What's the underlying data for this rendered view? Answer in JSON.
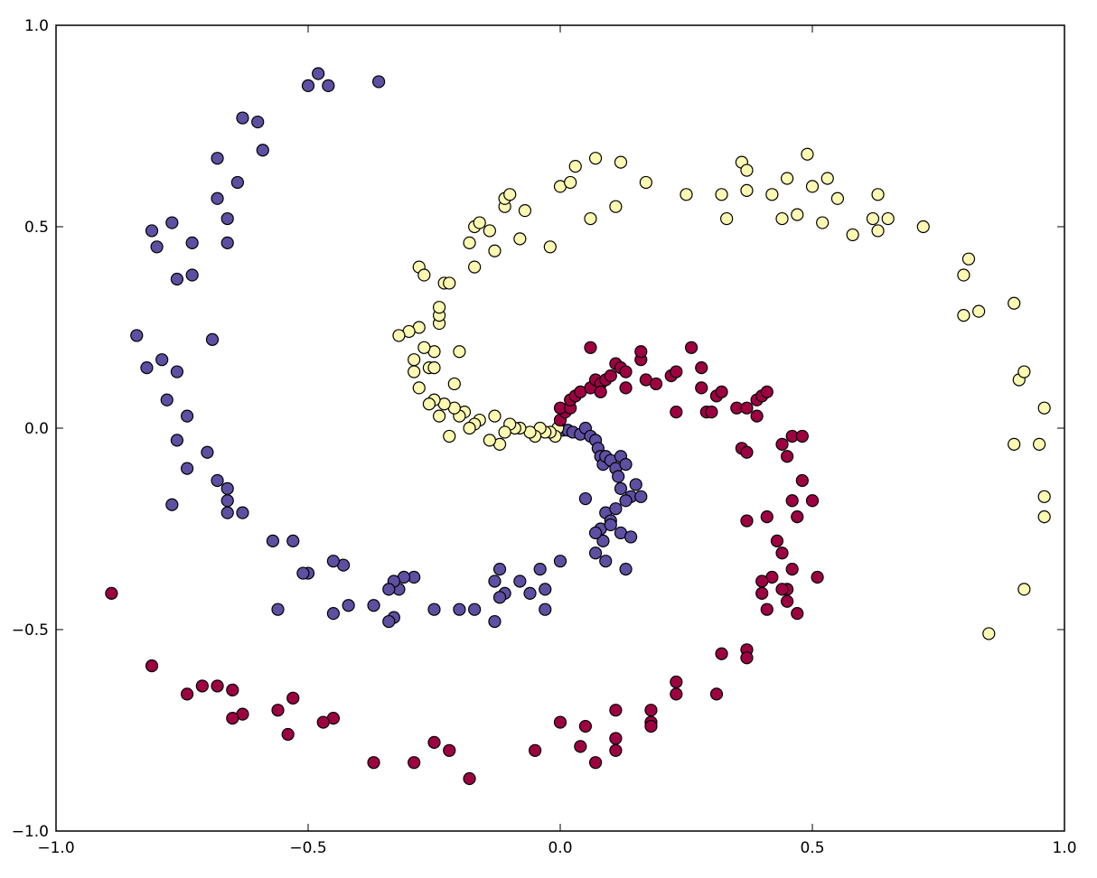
{
  "chart_data": {
    "type": "scatter",
    "title": "",
    "xlabel": "",
    "ylabel": "",
    "xlim": [
      -1.0,
      1.0
    ],
    "ylim": [
      -1.0,
      1.0
    ],
    "xticks": [
      -1.0,
      -0.5,
      0.0,
      0.5,
      1.0
    ],
    "xtick_labels": [
      "−1.0",
      "−0.5",
      "0.0",
      "0.5",
      "1.0"
    ],
    "yticks": [
      -1.0,
      -0.5,
      0.0,
      0.5,
      1.0
    ],
    "ytick_labels": [
      "−1.0",
      "−0.5",
      "0.0",
      "0.5",
      "1.0"
    ],
    "grid": false,
    "legend": "none",
    "series": [
      {
        "color": "#5e4fa2",
        "points": [
          [
            0.005,
            -0.005
          ],
          [
            0.015,
            -0.005
          ],
          [
            0.025,
            -0.01
          ],
          [
            0.04,
            -0.015
          ],
          [
            0.05,
            0.0
          ],
          [
            0.06,
            -0.02
          ],
          [
            0.07,
            -0.03
          ],
          [
            0.075,
            -0.05
          ],
          [
            0.08,
            -0.07
          ],
          [
            0.085,
            -0.09
          ],
          [
            0.09,
            -0.07
          ],
          [
            0.1,
            -0.08
          ],
          [
            0.11,
            -0.1
          ],
          [
            0.115,
            -0.12
          ],
          [
            0.12,
            -0.07
          ],
          [
            0.13,
            -0.09
          ],
          [
            0.14,
            -0.17
          ],
          [
            0.12,
            -0.15
          ],
          [
            0.15,
            -0.14
          ],
          [
            0.16,
            -0.17
          ],
          [
            0.13,
            -0.18
          ],
          [
            0.05,
            -0.175
          ],
          [
            0.09,
            -0.21
          ],
          [
            0.1,
            -0.23
          ],
          [
            0.08,
            -0.25
          ],
          [
            0.085,
            -0.28
          ],
          [
            0.07,
            -0.31
          ],
          [
            0.09,
            -0.33
          ],
          [
            0.12,
            -0.26
          ],
          [
            0.14,
            -0.27
          ],
          [
            0.13,
            -0.35
          ],
          [
            0.07,
            -0.26
          ],
          [
            0.1,
            -0.24
          ],
          [
            0.11,
            -0.2
          ],
          [
            0.0,
            -0.33
          ],
          [
            -0.03,
            -0.4
          ],
          [
            -0.04,
            -0.35
          ],
          [
            -0.06,
            -0.41
          ],
          [
            -0.08,
            -0.38
          ],
          [
            -0.11,
            -0.41
          ],
          [
            -0.12,
            -0.42
          ],
          [
            -0.13,
            -0.38
          ],
          [
            -0.12,
            -0.35
          ],
          [
            -0.13,
            -0.48
          ],
          [
            -0.17,
            -0.45
          ],
          [
            -0.2,
            -0.45
          ],
          [
            -0.03,
            -0.45
          ],
          [
            -0.25,
            -0.45
          ],
          [
            -0.29,
            -0.37
          ],
          [
            -0.31,
            -0.37
          ],
          [
            -0.32,
            -0.4
          ],
          [
            -0.33,
            -0.38
          ],
          [
            -0.34,
            -0.4
          ],
          [
            -0.33,
            -0.47
          ],
          [
            -0.34,
            -0.48
          ],
          [
            -0.37,
            -0.44
          ],
          [
            -0.42,
            -0.44
          ],
          [
            -0.45,
            -0.46
          ],
          [
            -0.43,
            -0.34
          ],
          [
            -0.45,
            -0.33
          ],
          [
            -0.5,
            -0.36
          ],
          [
            -0.51,
            -0.36
          ],
          [
            -0.53,
            -0.28
          ],
          [
            -0.56,
            -0.45
          ],
          [
            -0.57,
            -0.28
          ],
          [
            -0.63,
            -0.21
          ],
          [
            -0.66,
            -0.21
          ],
          [
            -0.66,
            -0.18
          ],
          [
            -0.66,
            -0.15
          ],
          [
            -0.68,
            -0.13
          ],
          [
            -0.7,
            -0.06
          ],
          [
            -0.74,
            -0.1
          ],
          [
            -0.74,
            0.03
          ],
          [
            -0.76,
            -0.03
          ],
          [
            -0.77,
            -0.19
          ],
          [
            -0.78,
            0.07
          ],
          [
            -0.76,
            0.14
          ],
          [
            -0.79,
            0.17
          ],
          [
            -0.82,
            0.15
          ],
          [
            -0.84,
            0.23
          ],
          [
            -0.69,
            0.22
          ],
          [
            -0.73,
            0.38
          ],
          [
            -0.76,
            0.37
          ],
          [
            -0.73,
            0.46
          ],
          [
            -0.77,
            0.51
          ],
          [
            -0.8,
            0.45
          ],
          [
            -0.81,
            0.49
          ],
          [
            -0.66,
            0.46
          ],
          [
            -0.66,
            0.52
          ],
          [
            -0.68,
            0.57
          ],
          [
            -0.68,
            0.67
          ],
          [
            -0.64,
            0.61
          ],
          [
            -0.63,
            0.77
          ],
          [
            -0.6,
            0.76
          ],
          [
            -0.59,
            0.69
          ],
          [
            -0.5,
            0.85
          ],
          [
            -0.48,
            0.88
          ],
          [
            -0.46,
            0.85
          ],
          [
            -0.36,
            0.86
          ]
        ]
      },
      {
        "color": "#fbf9b2",
        "points": [
          [
            -0.005,
            0.0
          ],
          [
            -0.01,
            -0.02
          ],
          [
            -0.02,
            -0.01
          ],
          [
            -0.03,
            -0.01
          ],
          [
            -0.04,
            0.0
          ],
          [
            -0.05,
            -0.02
          ],
          [
            -0.06,
            -0.01
          ],
          [
            -0.08,
            0.0
          ],
          [
            -0.09,
            0.0
          ],
          [
            -0.1,
            0.01
          ],
          [
            -0.11,
            -0.01
          ],
          [
            -0.12,
            -0.04
          ],
          [
            -0.13,
            0.03
          ],
          [
            -0.14,
            -0.03
          ],
          [
            -0.16,
            0.02
          ],
          [
            -0.17,
            0.01
          ],
          [
            -0.18,
            0.0
          ],
          [
            -0.19,
            0.04
          ],
          [
            -0.2,
            0.03
          ],
          [
            -0.21,
            0.05
          ],
          [
            -0.22,
            -0.02
          ],
          [
            -0.23,
            0.06
          ],
          [
            -0.24,
            0.03
          ],
          [
            -0.25,
            0.07
          ],
          [
            -0.26,
            0.06
          ],
          [
            -0.28,
            0.1
          ],
          [
            -0.29,
            0.14
          ],
          [
            -0.29,
            0.17
          ],
          [
            -0.26,
            0.15
          ],
          [
            -0.25,
            0.19
          ],
          [
            -0.27,
            0.2
          ],
          [
            -0.25,
            0.15
          ],
          [
            -0.21,
            0.11
          ],
          [
            -0.2,
            0.19
          ],
          [
            -0.28,
            0.25
          ],
          [
            -0.24,
            0.26
          ],
          [
            -0.24,
            0.28
          ],
          [
            -0.24,
            0.3
          ],
          [
            -0.3,
            0.24
          ],
          [
            -0.32,
            0.23
          ],
          [
            -0.28,
            0.4
          ],
          [
            -0.27,
            0.38
          ],
          [
            -0.23,
            0.36
          ],
          [
            -0.22,
            0.36
          ],
          [
            -0.18,
            0.46
          ],
          [
            -0.17,
            0.4
          ],
          [
            -0.17,
            0.5
          ],
          [
            -0.16,
            0.51
          ],
          [
            -0.14,
            0.49
          ],
          [
            -0.13,
            0.44
          ],
          [
            -0.11,
            0.55
          ],
          [
            -0.11,
            0.57
          ],
          [
            -0.1,
            0.58
          ],
          [
            -0.08,
            0.47
          ],
          [
            -0.07,
            0.54
          ],
          [
            -0.02,
            0.45
          ],
          [
            0.0,
            0.6
          ],
          [
            0.02,
            0.61
          ],
          [
            0.03,
            0.65
          ],
          [
            0.06,
            0.52
          ],
          [
            0.07,
            0.67
          ],
          [
            0.11,
            0.55
          ],
          [
            0.12,
            0.66
          ],
          [
            0.17,
            0.61
          ],
          [
            0.25,
            0.58
          ],
          [
            0.32,
            0.58
          ],
          [
            0.33,
            0.52
          ],
          [
            0.36,
            0.66
          ],
          [
            0.37,
            0.64
          ],
          [
            0.37,
            0.59
          ],
          [
            0.42,
            0.58
          ],
          [
            0.44,
            0.52
          ],
          [
            0.45,
            0.62
          ],
          [
            0.47,
            0.53
          ],
          [
            0.49,
            0.68
          ],
          [
            0.5,
            0.6
          ],
          [
            0.52,
            0.51
          ],
          [
            0.53,
            0.62
          ],
          [
            0.55,
            0.57
          ],
          [
            0.58,
            0.48
          ],
          [
            0.62,
            0.52
          ],
          [
            0.63,
            0.58
          ],
          [
            0.63,
            0.49
          ],
          [
            0.65,
            0.52
          ],
          [
            0.72,
            0.5
          ],
          [
            0.8,
            0.38
          ],
          [
            0.81,
            0.42
          ],
          [
            0.8,
            0.28
          ],
          [
            0.83,
            0.29
          ],
          [
            0.9,
            0.31
          ],
          [
            0.91,
            0.12
          ],
          [
            0.92,
            0.14
          ],
          [
            0.96,
            0.05
          ],
          [
            0.9,
            -0.04
          ],
          [
            0.95,
            -0.04
          ],
          [
            0.96,
            -0.17
          ],
          [
            0.96,
            -0.22
          ],
          [
            0.92,
            -0.4
          ],
          [
            0.85,
            -0.51
          ]
        ]
      },
      {
        "color": "#9e0142",
        "points": [
          [
            0.0,
            0.02
          ],
          [
            0.01,
            0.04
          ],
          [
            0.0,
            0.05
          ],
          [
            0.02,
            0.05
          ],
          [
            0.02,
            0.07
          ],
          [
            0.03,
            0.08
          ],
          [
            0.04,
            0.09
          ],
          [
            0.06,
            0.1
          ],
          [
            0.07,
            0.12
          ],
          [
            0.08,
            0.11
          ],
          [
            0.08,
            0.09
          ],
          [
            0.09,
            0.12
          ],
          [
            0.1,
            0.13
          ],
          [
            0.11,
            0.16
          ],
          [
            0.12,
            0.15
          ],
          [
            0.13,
            0.14
          ],
          [
            0.13,
            0.1
          ],
          [
            0.06,
            0.2
          ],
          [
            0.16,
            0.17
          ],
          [
            0.16,
            0.19
          ],
          [
            0.17,
            0.12
          ],
          [
            0.19,
            0.11
          ],
          [
            0.22,
            0.13
          ],
          [
            0.23,
            0.14
          ],
          [
            0.23,
            0.04
          ],
          [
            0.26,
            0.2
          ],
          [
            0.28,
            0.15
          ],
          [
            0.28,
            0.1
          ],
          [
            0.29,
            0.04
          ],
          [
            0.3,
            0.04
          ],
          [
            0.31,
            0.08
          ],
          [
            0.32,
            0.09
          ],
          [
            0.35,
            0.05
          ],
          [
            0.37,
            0.05
          ],
          [
            0.39,
            0.07
          ],
          [
            0.39,
            0.03
          ],
          [
            0.4,
            0.08
          ],
          [
            0.41,
            0.09
          ],
          [
            0.36,
            -0.05
          ],
          [
            0.37,
            -0.06
          ],
          [
            0.44,
            -0.04
          ],
          [
            0.45,
            -0.07
          ],
          [
            0.46,
            -0.02
          ],
          [
            0.48,
            -0.02
          ],
          [
            0.48,
            -0.13
          ],
          [
            0.46,
            -0.18
          ],
          [
            0.47,
            -0.22
          ],
          [
            0.5,
            -0.18
          ],
          [
            0.41,
            -0.22
          ],
          [
            0.37,
            -0.23
          ],
          [
            0.43,
            -0.28
          ],
          [
            0.44,
            -0.31
          ],
          [
            0.45,
            -0.4
          ],
          [
            0.46,
            -0.35
          ],
          [
            0.42,
            -0.37
          ],
          [
            0.4,
            -0.38
          ],
          [
            0.44,
            -0.4
          ],
          [
            0.4,
            -0.41
          ],
          [
            0.45,
            -0.43
          ],
          [
            0.41,
            -0.45
          ],
          [
            0.47,
            -0.46
          ],
          [
            0.51,
            -0.37
          ],
          [
            0.37,
            -0.55
          ],
          [
            0.37,
            -0.57
          ],
          [
            0.32,
            -0.56
          ],
          [
            0.31,
            -0.66
          ],
          [
            0.23,
            -0.63
          ],
          [
            0.23,
            -0.66
          ],
          [
            0.18,
            -0.7
          ],
          [
            0.18,
            -0.73
          ],
          [
            0.18,
            -0.74
          ],
          [
            0.11,
            -0.7
          ],
          [
            0.11,
            -0.77
          ],
          [
            0.11,
            -0.8
          ],
          [
            0.07,
            -0.83
          ],
          [
            0.05,
            -0.74
          ],
          [
            0.04,
            -0.79
          ],
          [
            0.0,
            -0.73
          ],
          [
            -0.05,
            -0.8
          ],
          [
            -0.18,
            -0.87
          ],
          [
            -0.22,
            -0.8
          ],
          [
            -0.25,
            -0.78
          ],
          [
            -0.29,
            -0.83
          ],
          [
            -0.37,
            -0.83
          ],
          [
            -0.45,
            -0.72
          ],
          [
            -0.47,
            -0.73
          ],
          [
            -0.53,
            -0.67
          ],
          [
            -0.54,
            -0.76
          ],
          [
            -0.56,
            -0.7
          ],
          [
            -0.63,
            -0.71
          ],
          [
            -0.65,
            -0.72
          ],
          [
            -0.65,
            -0.65
          ],
          [
            -0.68,
            -0.64
          ],
          [
            -0.71,
            -0.64
          ],
          [
            -0.74,
            -0.66
          ],
          [
            -0.81,
            -0.59
          ],
          [
            -0.89,
            -0.41
          ]
        ]
      }
    ]
  }
}
